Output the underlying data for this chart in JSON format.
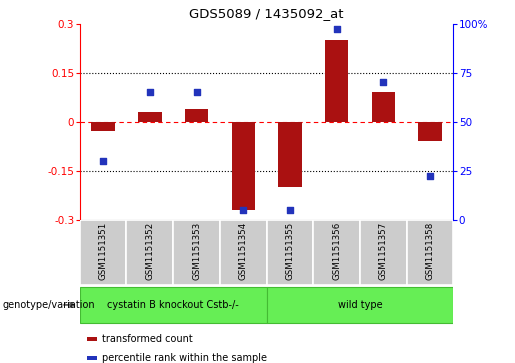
{
  "title": "GDS5089 / 1435092_at",
  "samples": [
    "GSM1151351",
    "GSM1151352",
    "GSM1151353",
    "GSM1151354",
    "GSM1151355",
    "GSM1151356",
    "GSM1151357",
    "GSM1151358"
  ],
  "transformed_count": [
    -0.03,
    0.03,
    0.04,
    -0.27,
    -0.2,
    0.25,
    0.09,
    -0.06
  ],
  "percentile_rank": [
    30,
    65,
    65,
    5,
    5,
    97,
    70,
    22
  ],
  "ylim_left": [
    -0.3,
    0.3
  ],
  "ylim_right": [
    0,
    100
  ],
  "yticks_left": [
    -0.3,
    -0.15,
    0.0,
    0.15,
    0.3
  ],
  "yticks_right": [
    0,
    25,
    50,
    75,
    100
  ],
  "bar_color": "#aa1111",
  "dot_color": "#2233bb",
  "dot_size": 20,
  "bar_width": 0.5,
  "legend_label_bar": "transformed count",
  "legend_label_dot": "percentile rank within the sample",
  "genotype_label": "genotype/variation",
  "group1_label": "cystatin B knockout Cstb-/-",
  "group2_label": "wild type",
  "group1_count": 4,
  "group2_count": 4,
  "sample_box_color": "#cccccc",
  "group_box_color": "#66ee55",
  "group_box_edge_color": "#44bb33"
}
